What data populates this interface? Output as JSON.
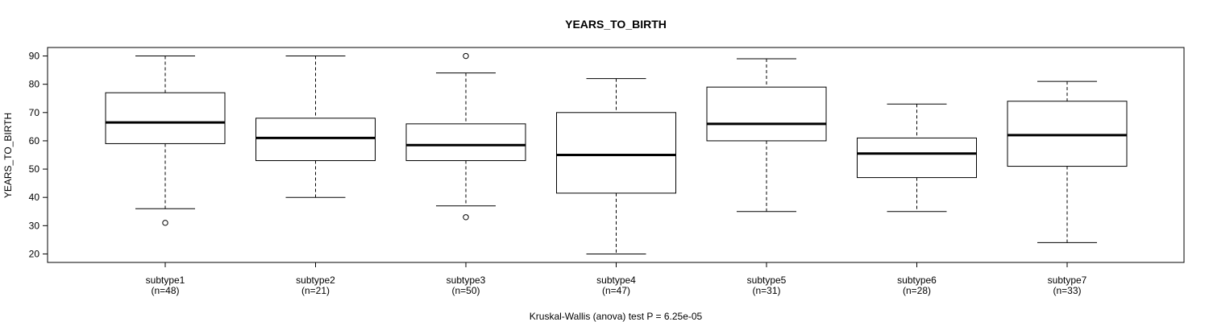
{
  "chart_data": {
    "type": "boxplot",
    "title": "YEARS_TO_BIRTH",
    "ylabel": "YEARS_TO_BIRTH",
    "xlabel": "Kruskal-Wallis (anova) test P = 6.25e-05",
    "ylim": [
      17,
      93
    ],
    "yticks": [
      20,
      30,
      40,
      50,
      60,
      70,
      80,
      90
    ],
    "categories": [
      "subtype1",
      "subtype2",
      "subtype3",
      "subtype4",
      "subtype5",
      "subtype6",
      "subtype7"
    ],
    "counts": [
      "(n=48)",
      "(n=21)",
      "(n=50)",
      "(n=47)",
      "(n=31)",
      "(n=28)",
      "(n=33)"
    ],
    "boxes": [
      {
        "whisker_low": 36,
        "q1": 59,
        "median": 66.5,
        "q3": 77,
        "whisker_high": 90,
        "outliers": [
          31
        ]
      },
      {
        "whisker_low": 40,
        "q1": 53,
        "median": 61,
        "q3": 68,
        "whisker_high": 90,
        "outliers": []
      },
      {
        "whisker_low": 37,
        "q1": 53,
        "median": 58.5,
        "q3": 66,
        "whisker_high": 84,
        "outliers": [
          33,
          90
        ]
      },
      {
        "whisker_low": 20,
        "q1": 41.5,
        "median": 55,
        "q3": 70,
        "whisker_high": 82,
        "outliers": []
      },
      {
        "whisker_low": 35,
        "q1": 60,
        "median": 66,
        "q3": 79,
        "whisker_high": 89,
        "outliers": []
      },
      {
        "whisker_low": 35,
        "q1": 47,
        "median": 55.5,
        "q3": 61,
        "whisker_high": 73,
        "outliers": []
      },
      {
        "whisker_low": 24,
        "q1": 51,
        "median": 62,
        "q3": 74,
        "whisker_high": 81,
        "outliers": []
      }
    ],
    "grid": false,
    "legend": "none"
  }
}
